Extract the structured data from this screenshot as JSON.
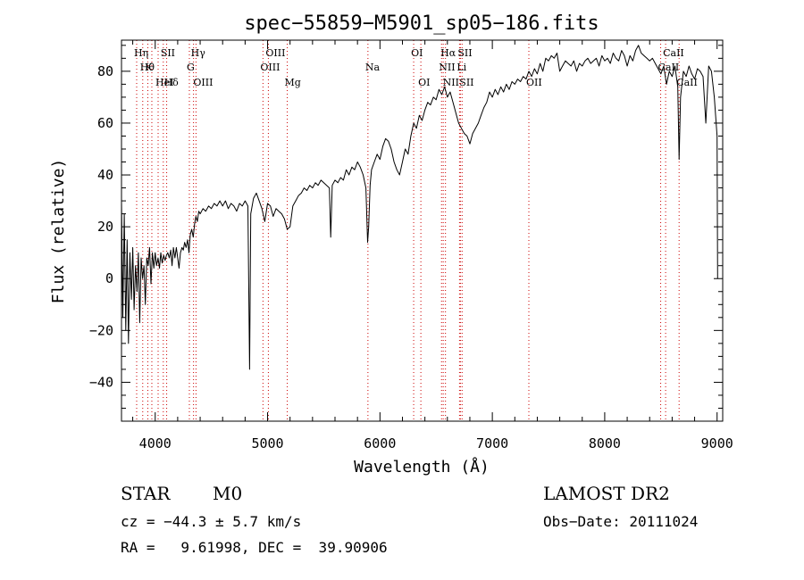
{
  "chart_data": {
    "type": "line",
    "title": "spec−55859−M5901_sp05−186.fits",
    "xlabel": "Wavelength (Å)",
    "ylabel": "Flux (relative)",
    "xlim": [
      3700,
      9050
    ],
    "ylim": [
      -55,
      92
    ],
    "x_ticks": [
      4000,
      5000,
      6000,
      7000,
      8000,
      9000
    ],
    "x_tick_labels": [
      "4000",
      "5000",
      "6000",
      "7000",
      "8000",
      "9000"
    ],
    "y_ticks": [
      -40,
      -20,
      0,
      20,
      40,
      60,
      80
    ],
    "y_tick_labels": [
      "−40",
      "−20",
      "0",
      "20",
      "40",
      "60",
      "80"
    ],
    "grid": false,
    "line_color": "#000000",
    "marker_color": "#cc0000",
    "series": [
      {
        "points": [
          [
            3700,
            30
          ],
          [
            3712,
            -15
          ],
          [
            3725,
            25
          ],
          [
            3738,
            -20
          ],
          [
            3750,
            15
          ],
          [
            3762,
            -25
          ],
          [
            3775,
            10
          ],
          [
            3788,
            -8
          ],
          [
            3800,
            12
          ],
          [
            3812,
            -12
          ],
          [
            3825,
            5
          ],
          [
            3838,
            -5
          ],
          [
            3850,
            10
          ],
          [
            3862,
            -17
          ],
          [
            3875,
            8
          ],
          [
            3888,
            0
          ],
          [
            3900,
            5
          ],
          [
            3912,
            -10
          ],
          [
            3925,
            8
          ],
          [
            3938,
            5
          ],
          [
            3950,
            12
          ],
          [
            3962,
            -2
          ],
          [
            3975,
            10
          ],
          [
            3988,
            4
          ],
          [
            4000,
            10
          ],
          [
            4012,
            5
          ],
          [
            4025,
            8
          ],
          [
            4038,
            4
          ],
          [
            4050,
            10
          ],
          [
            4062,
            6
          ],
          [
            4075,
            9
          ],
          [
            4088,
            7
          ],
          [
            4100,
            9
          ],
          [
            4112,
            10
          ],
          [
            4125,
            8
          ],
          [
            4138,
            11
          ],
          [
            4150,
            5
          ],
          [
            4162,
            12
          ],
          [
            4175,
            8
          ],
          [
            4188,
            12
          ],
          [
            4200,
            8
          ],
          [
            4212,
            4
          ],
          [
            4225,
            10
          ],
          [
            4238,
            12
          ],
          [
            4250,
            11
          ],
          [
            4262,
            14
          ],
          [
            4275,
            12
          ],
          [
            4288,
            15
          ],
          [
            4300,
            10
          ],
          [
            4312,
            17
          ],
          [
            4325,
            19
          ],
          [
            4338,
            16
          ],
          [
            4350,
            21
          ],
          [
            4362,
            24
          ],
          [
            4375,
            22
          ],
          [
            4388,
            26
          ],
          [
            4400,
            25
          ],
          [
            4425,
            27
          ],
          [
            4450,
            26
          ],
          [
            4475,
            28
          ],
          [
            4500,
            27
          ],
          [
            4525,
            29
          ],
          [
            4550,
            28
          ],
          [
            4575,
            30
          ],
          [
            4600,
            28
          ],
          [
            4625,
            30
          ],
          [
            4650,
            27
          ],
          [
            4675,
            29
          ],
          [
            4700,
            28
          ],
          [
            4725,
            26
          ],
          [
            4750,
            29
          ],
          [
            4775,
            28
          ],
          [
            4800,
            30
          ],
          [
            4825,
            28
          ],
          [
            4840,
            -35
          ],
          [
            4850,
            25
          ],
          [
            4875,
            31
          ],
          [
            4900,
            33
          ],
          [
            4925,
            30
          ],
          [
            4950,
            27
          ],
          [
            4975,
            22
          ],
          [
            5000,
            29
          ],
          [
            5025,
            28
          ],
          [
            5050,
            24
          ],
          [
            5075,
            27
          ],
          [
            5100,
            26
          ],
          [
            5125,
            25
          ],
          [
            5150,
            23
          ],
          [
            5175,
            19
          ],
          [
            5200,
            20
          ],
          [
            5225,
            28
          ],
          [
            5250,
            30
          ],
          [
            5275,
            32
          ],
          [
            5300,
            33
          ],
          [
            5325,
            35
          ],
          [
            5350,
            34
          ],
          [
            5375,
            36
          ],
          [
            5400,
            35
          ],
          [
            5425,
            37
          ],
          [
            5450,
            36
          ],
          [
            5475,
            38
          ],
          [
            5500,
            37
          ],
          [
            5525,
            36
          ],
          [
            5550,
            35
          ],
          [
            5562,
            16
          ],
          [
            5575,
            36
          ],
          [
            5600,
            38
          ],
          [
            5625,
            37
          ],
          [
            5650,
            39
          ],
          [
            5675,
            38
          ],
          [
            5700,
            42
          ],
          [
            5725,
            40
          ],
          [
            5750,
            43
          ],
          [
            5775,
            42
          ],
          [
            5800,
            45
          ],
          [
            5825,
            43
          ],
          [
            5850,
            40
          ],
          [
            5875,
            35
          ],
          [
            5890,
            14
          ],
          [
            5900,
            20
          ],
          [
            5912,
            36
          ],
          [
            5925,
            42
          ],
          [
            5950,
            45
          ],
          [
            5975,
            48
          ],
          [
            6000,
            46
          ],
          [
            6025,
            51
          ],
          [
            6050,
            54
          ],
          [
            6075,
            53
          ],
          [
            6100,
            50
          ],
          [
            6125,
            45
          ],
          [
            6150,
            42
          ],
          [
            6175,
            40
          ],
          [
            6200,
            45
          ],
          [
            6225,
            50
          ],
          [
            6250,
            48
          ],
          [
            6275,
            55
          ],
          [
            6300,
            60
          ],
          [
            6325,
            58
          ],
          [
            6350,
            63
          ],
          [
            6375,
            61
          ],
          [
            6400,
            65
          ],
          [
            6425,
            68
          ],
          [
            6450,
            67
          ],
          [
            6475,
            70
          ],
          [
            6500,
            69
          ],
          [
            6525,
            73
          ],
          [
            6550,
            71
          ],
          [
            6575,
            74
          ],
          [
            6600,
            70
          ],
          [
            6625,
            72
          ],
          [
            6650,
            68
          ],
          [
            6675,
            64
          ],
          [
            6700,
            60
          ],
          [
            6725,
            58
          ],
          [
            6750,
            56
          ],
          [
            6775,
            55
          ],
          [
            6800,
            52
          ],
          [
            6825,
            56
          ],
          [
            6850,
            58
          ],
          [
            6875,
            60
          ],
          [
            6900,
            63
          ],
          [
            6925,
            66
          ],
          [
            6950,
            68
          ],
          [
            6975,
            72
          ],
          [
            7000,
            70
          ],
          [
            7025,
            73
          ],
          [
            7050,
            71
          ],
          [
            7075,
            74
          ],
          [
            7100,
            72
          ],
          [
            7125,
            75
          ],
          [
            7150,
            73
          ],
          [
            7175,
            76
          ],
          [
            7200,
            75
          ],
          [
            7225,
            77
          ],
          [
            7250,
            76
          ],
          [
            7275,
            78
          ],
          [
            7300,
            77
          ],
          [
            7325,
            80
          ],
          [
            7350,
            78
          ],
          [
            7375,
            81
          ],
          [
            7400,
            79
          ],
          [
            7425,
            83
          ],
          [
            7450,
            80
          ],
          [
            7475,
            85
          ],
          [
            7500,
            84
          ],
          [
            7525,
            86
          ],
          [
            7550,
            85
          ],
          [
            7575,
            87
          ],
          [
            7600,
            80
          ],
          [
            7625,
            82
          ],
          [
            7650,
            84
          ],
          [
            7675,
            83
          ],
          [
            7700,
            82
          ],
          [
            7725,
            84
          ],
          [
            7750,
            80
          ],
          [
            7775,
            83
          ],
          [
            7800,
            82
          ],
          [
            7825,
            84
          ],
          [
            7850,
            85
          ],
          [
            7875,
            83
          ],
          [
            7900,
            84
          ],
          [
            7925,
            85
          ],
          [
            7950,
            82
          ],
          [
            7975,
            86
          ],
          [
            8000,
            84
          ],
          [
            8025,
            85
          ],
          [
            8050,
            83
          ],
          [
            8075,
            87
          ],
          [
            8100,
            85
          ],
          [
            8125,
            84
          ],
          [
            8150,
            88
          ],
          [
            8175,
            86
          ],
          [
            8200,
            82
          ],
          [
            8225,
            86
          ],
          [
            8250,
            84
          ],
          [
            8275,
            88
          ],
          [
            8300,
            90
          ],
          [
            8325,
            87
          ],
          [
            8350,
            86
          ],
          [
            8375,
            85
          ],
          [
            8400,
            84
          ],
          [
            8425,
            85
          ],
          [
            8450,
            83
          ],
          [
            8475,
            81
          ],
          [
            8500,
            79
          ],
          [
            8525,
            82
          ],
          [
            8550,
            75
          ],
          [
            8575,
            80
          ],
          [
            8600,
            78
          ],
          [
            8625,
            82
          ],
          [
            8650,
            74
          ],
          [
            8662,
            46
          ],
          [
            8675,
            70
          ],
          [
            8700,
            80
          ],
          [
            8725,
            78
          ],
          [
            8750,
            82
          ],
          [
            8775,
            79
          ],
          [
            8800,
            77
          ],
          [
            8825,
            81
          ],
          [
            8850,
            80
          ],
          [
            8875,
            78
          ],
          [
            8900,
            60
          ],
          [
            8925,
            82
          ],
          [
            8950,
            80
          ],
          [
            8975,
            70
          ],
          [
            9000,
            55
          ],
          [
            9005,
            0
          ]
        ]
      }
    ],
    "lines": [
      {
        "x": 3835,
        "labels": [
          {
            "text": "Hη",
            "row": 0
          }
        ]
      },
      {
        "x": 3889,
        "labels": [
          {
            "text": "Hθ",
            "row": 1
          }
        ]
      },
      {
        "x": 3934,
        "labels": [
          {
            "text": "K",
            "row": 1
          }
        ]
      },
      {
        "x": 3970,
        "labels": []
      },
      {
        "x": 4026,
        "labels": [
          {
            "text": "HeI",
            "row": 2
          }
        ]
      },
      {
        "x": 4072,
        "labels": [
          {
            "text": "SII",
            "row": 0
          }
        ]
      },
      {
        "x": 4102,
        "labels": [
          {
            "text": "Hδ",
            "row": 2
          }
        ]
      },
      {
        "x": 4304,
        "labels": [
          {
            "text": "G",
            "row": 1
          }
        ]
      },
      {
        "x": 4341,
        "labels": [
          {
            "text": "Hγ",
            "row": 0
          }
        ]
      },
      {
        "x": 4363,
        "labels": [
          {
            "text": "OIII",
            "row": 2
          }
        ]
      },
      {
        "x": 4959,
        "labels": [
          {
            "text": "OIII",
            "row": 1
          }
        ]
      },
      {
        "x": 5007,
        "labels": [
          {
            "text": "OIII",
            "row": 0
          }
        ]
      },
      {
        "x": 5175,
        "labels": [
          {
            "text": "Mg",
            "row": 2
          }
        ]
      },
      {
        "x": 5893,
        "labels": [
          {
            "text": "Na",
            "row": 1
          }
        ]
      },
      {
        "x": 6300,
        "labels": [
          {
            "text": "OI",
            "row": 0
          }
        ]
      },
      {
        "x": 6364,
        "labels": [
          {
            "text": "OI",
            "row": 2
          }
        ]
      },
      {
        "x": 6548,
        "labels": [
          {
            "text": "NII",
            "row": 1
          }
        ]
      },
      {
        "x": 6563,
        "labels": [
          {
            "text": "Hα",
            "row": 0
          }
        ]
      },
      {
        "x": 6583,
        "labels": [
          {
            "text": "NII",
            "row": 2
          }
        ]
      },
      {
        "x": 6708,
        "labels": [
          {
            "text": "Li",
            "row": 1
          }
        ]
      },
      {
        "x": 6716,
        "labels": [
          {
            "text": "SII",
            "row": 0
          }
        ]
      },
      {
        "x": 6731,
        "labels": [
          {
            "text": "SII",
            "row": 2
          }
        ]
      },
      {
        "x": 7325,
        "labels": [
          {
            "text": "OII",
            "row": 2
          }
        ]
      },
      {
        "x": 8498,
        "labels": [
          {
            "text": "CaII",
            "row": 1
          }
        ]
      },
      {
        "x": 8542,
        "labels": [
          {
            "text": "CaII",
            "row": 0
          }
        ]
      },
      {
        "x": 8662,
        "labels": [
          {
            "text": "CaII",
            "row": 2
          }
        ]
      }
    ]
  },
  "footer": {
    "object_class": "STAR",
    "subclass": "M0",
    "survey": "LAMOST DR2",
    "cz_line": "cz = −44.3 ± 5.7 km/s",
    "obs_date_line": "Obs−Date: 20111024",
    "radec_line": "RA =   9.61998, DEC =  39.90906"
  }
}
